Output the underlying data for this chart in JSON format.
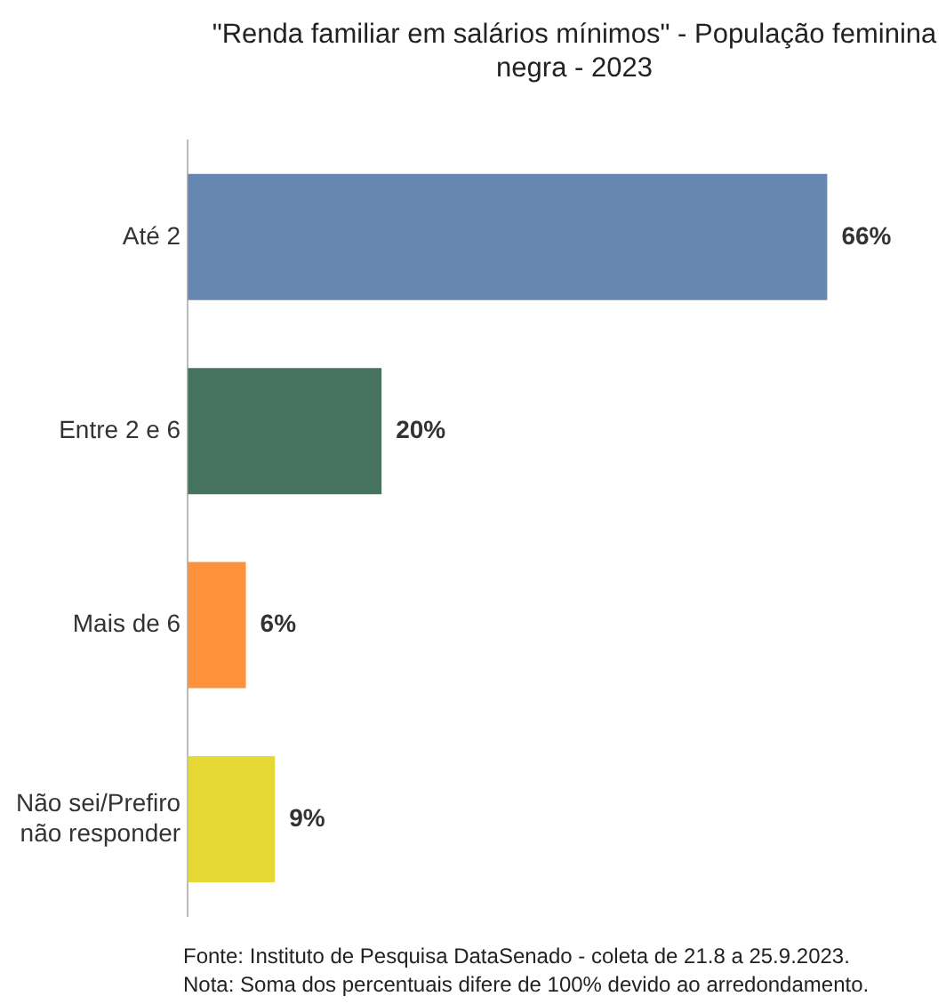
{
  "chart_data": {
    "type": "bar",
    "orientation": "horizontal",
    "title": "\"Renda familiar em salários mínimos\" - População feminina negra - 2023",
    "categories": [
      "Até 2",
      "Entre 2 e 6",
      "Mais de 6",
      "Não sei/Prefiro não responder"
    ],
    "values": [
      66,
      20,
      6,
      9
    ],
    "colors": [
      "#6688b0",
      "#467260",
      "#fd913c",
      "#e6d835"
    ],
    "value_labels": [
      "66%",
      "20%",
      "6%",
      "9%"
    ],
    "legend": false,
    "annotations": [
      "Fonte: Instituto de Pesquisa DataSenado - coleta de 21.8 a 25.9.2023.",
      "Nota: Soma dos percentuais difere de 100% devido ao arredondamento."
    ]
  }
}
